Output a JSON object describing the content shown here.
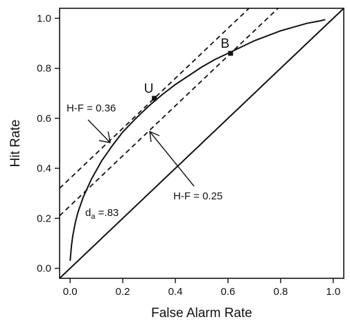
{
  "chart_data": {
    "type": "line",
    "title": "",
    "xlabel": "False Alarm Rate",
    "ylabel": "Hit Rate",
    "xlim": [
      -0.04,
      1.04
    ],
    "ylim": [
      -0.04,
      1.04
    ],
    "x_ticks": [
      "0.0",
      "0.2",
      "0.4",
      "0.6",
      "0.8",
      "1.0"
    ],
    "y_ticks": [
      "0.0",
      "0.2",
      "0.4",
      "0.6",
      "0.8",
      "1.0"
    ],
    "grid": false,
    "series": [
      {
        "name": "",
        "style": "solid",
        "x": [
          0.0,
          0.005,
          0.01,
          0.02,
          0.03,
          0.05,
          0.08,
          0.12,
          0.16,
          0.2,
          0.25,
          0.3,
          0.35,
          0.4,
          0.45,
          0.5,
          0.55,
          0.6,
          0.65,
          0.7,
          0.75,
          0.8,
          0.85,
          0.9,
          0.95,
          0.97
        ],
        "y": [
          0.03,
          0.09,
          0.13,
          0.185,
          0.225,
          0.285,
          0.355,
          0.43,
          0.49,
          0.545,
          0.6,
          0.65,
          0.695,
          0.735,
          0.77,
          0.805,
          0.835,
          0.86,
          0.885,
          0.91,
          0.93,
          0.95,
          0.965,
          0.98,
          0.99,
          0.995
        ]
      },
      {
        "name": "",
        "style": "solid",
        "x": [
          -0.04,
          1.04
        ],
        "y": [
          -0.04,
          1.04
        ]
      },
      {
        "name": "",
        "style": "dashed",
        "x": [
          -0.04,
          0.68
        ],
        "y": [
          0.32,
          1.04
        ]
      },
      {
        "name": "",
        "style": "dashed",
        "x": [
          -0.04,
          0.79
        ],
        "y": [
          0.21,
          1.04
        ]
      }
    ],
    "points": [
      {
        "label": "U",
        "x": 0.32,
        "y": 0.68
      },
      {
        "label": "B",
        "x": 0.61,
        "y": 0.86
      }
    ],
    "annotations": {
      "hf_upper": "H-F = 0.36",
      "hf_lower": "H-F = 0.25",
      "da_main": "d",
      "da_sub": "a",
      "da_value": " =.83"
    }
  }
}
